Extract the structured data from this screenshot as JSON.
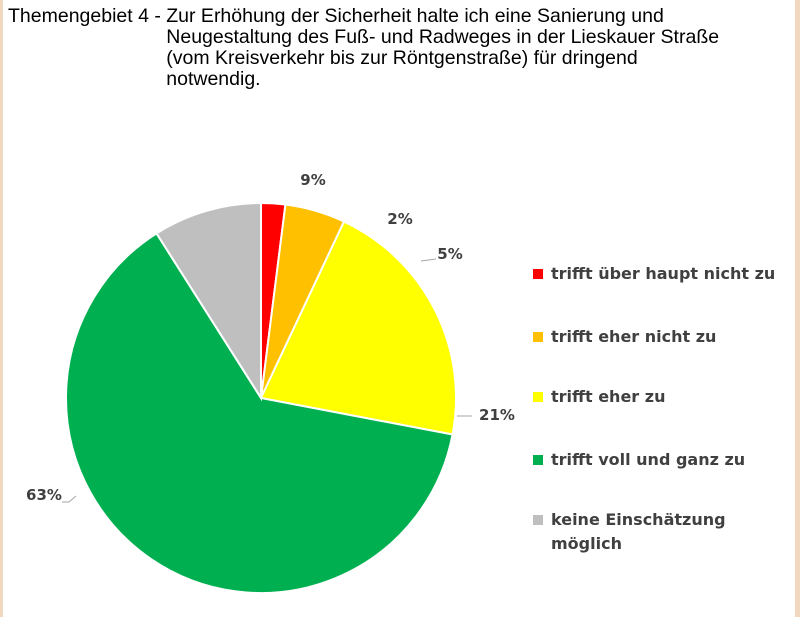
{
  "title": {
    "prefix": "Themengebiet 4 - ",
    "lines": [
      "Zur Erhöhung der Sicherheit halte ich eine Sanierung und",
      "Neugestaltung des Fuß- und Radweges in der Lieskauer Straße",
      "(vom Kreisverkehr bis zur Röntgenstraße) für dringend",
      "notwendig."
    ]
  },
  "chart_data": {
    "type": "pie",
    "title": "Themengebiet 4 - Zur Erhöhung der Sicherheit halte ich eine Sanierung und Neugestaltung des Fuß- und Radweges in der Lieskauer Straße (vom Kreisverkehr bis zur Röntgenstraße) für dringend notwendig.",
    "legend_position": "right",
    "slices": [
      {
        "name": "trifft über haupt nicht zu",
        "value": 2,
        "label": "2%",
        "color": "#ff0000"
      },
      {
        "name": "trifft eher nicht zu",
        "value": 5,
        "label": "5%",
        "color": "#ffc000"
      },
      {
        "name": "trifft eher zu",
        "value": 21,
        "label": "21%",
        "color": "#ffff00"
      },
      {
        "name": "trifft voll und ganz zu",
        "value": 63,
        "label": "63%",
        "color": "#00b050"
      },
      {
        "name": "keine Einschätzung möglich",
        "value": 9,
        "label": "9%",
        "color": "#bfbfbf"
      }
    ]
  }
}
